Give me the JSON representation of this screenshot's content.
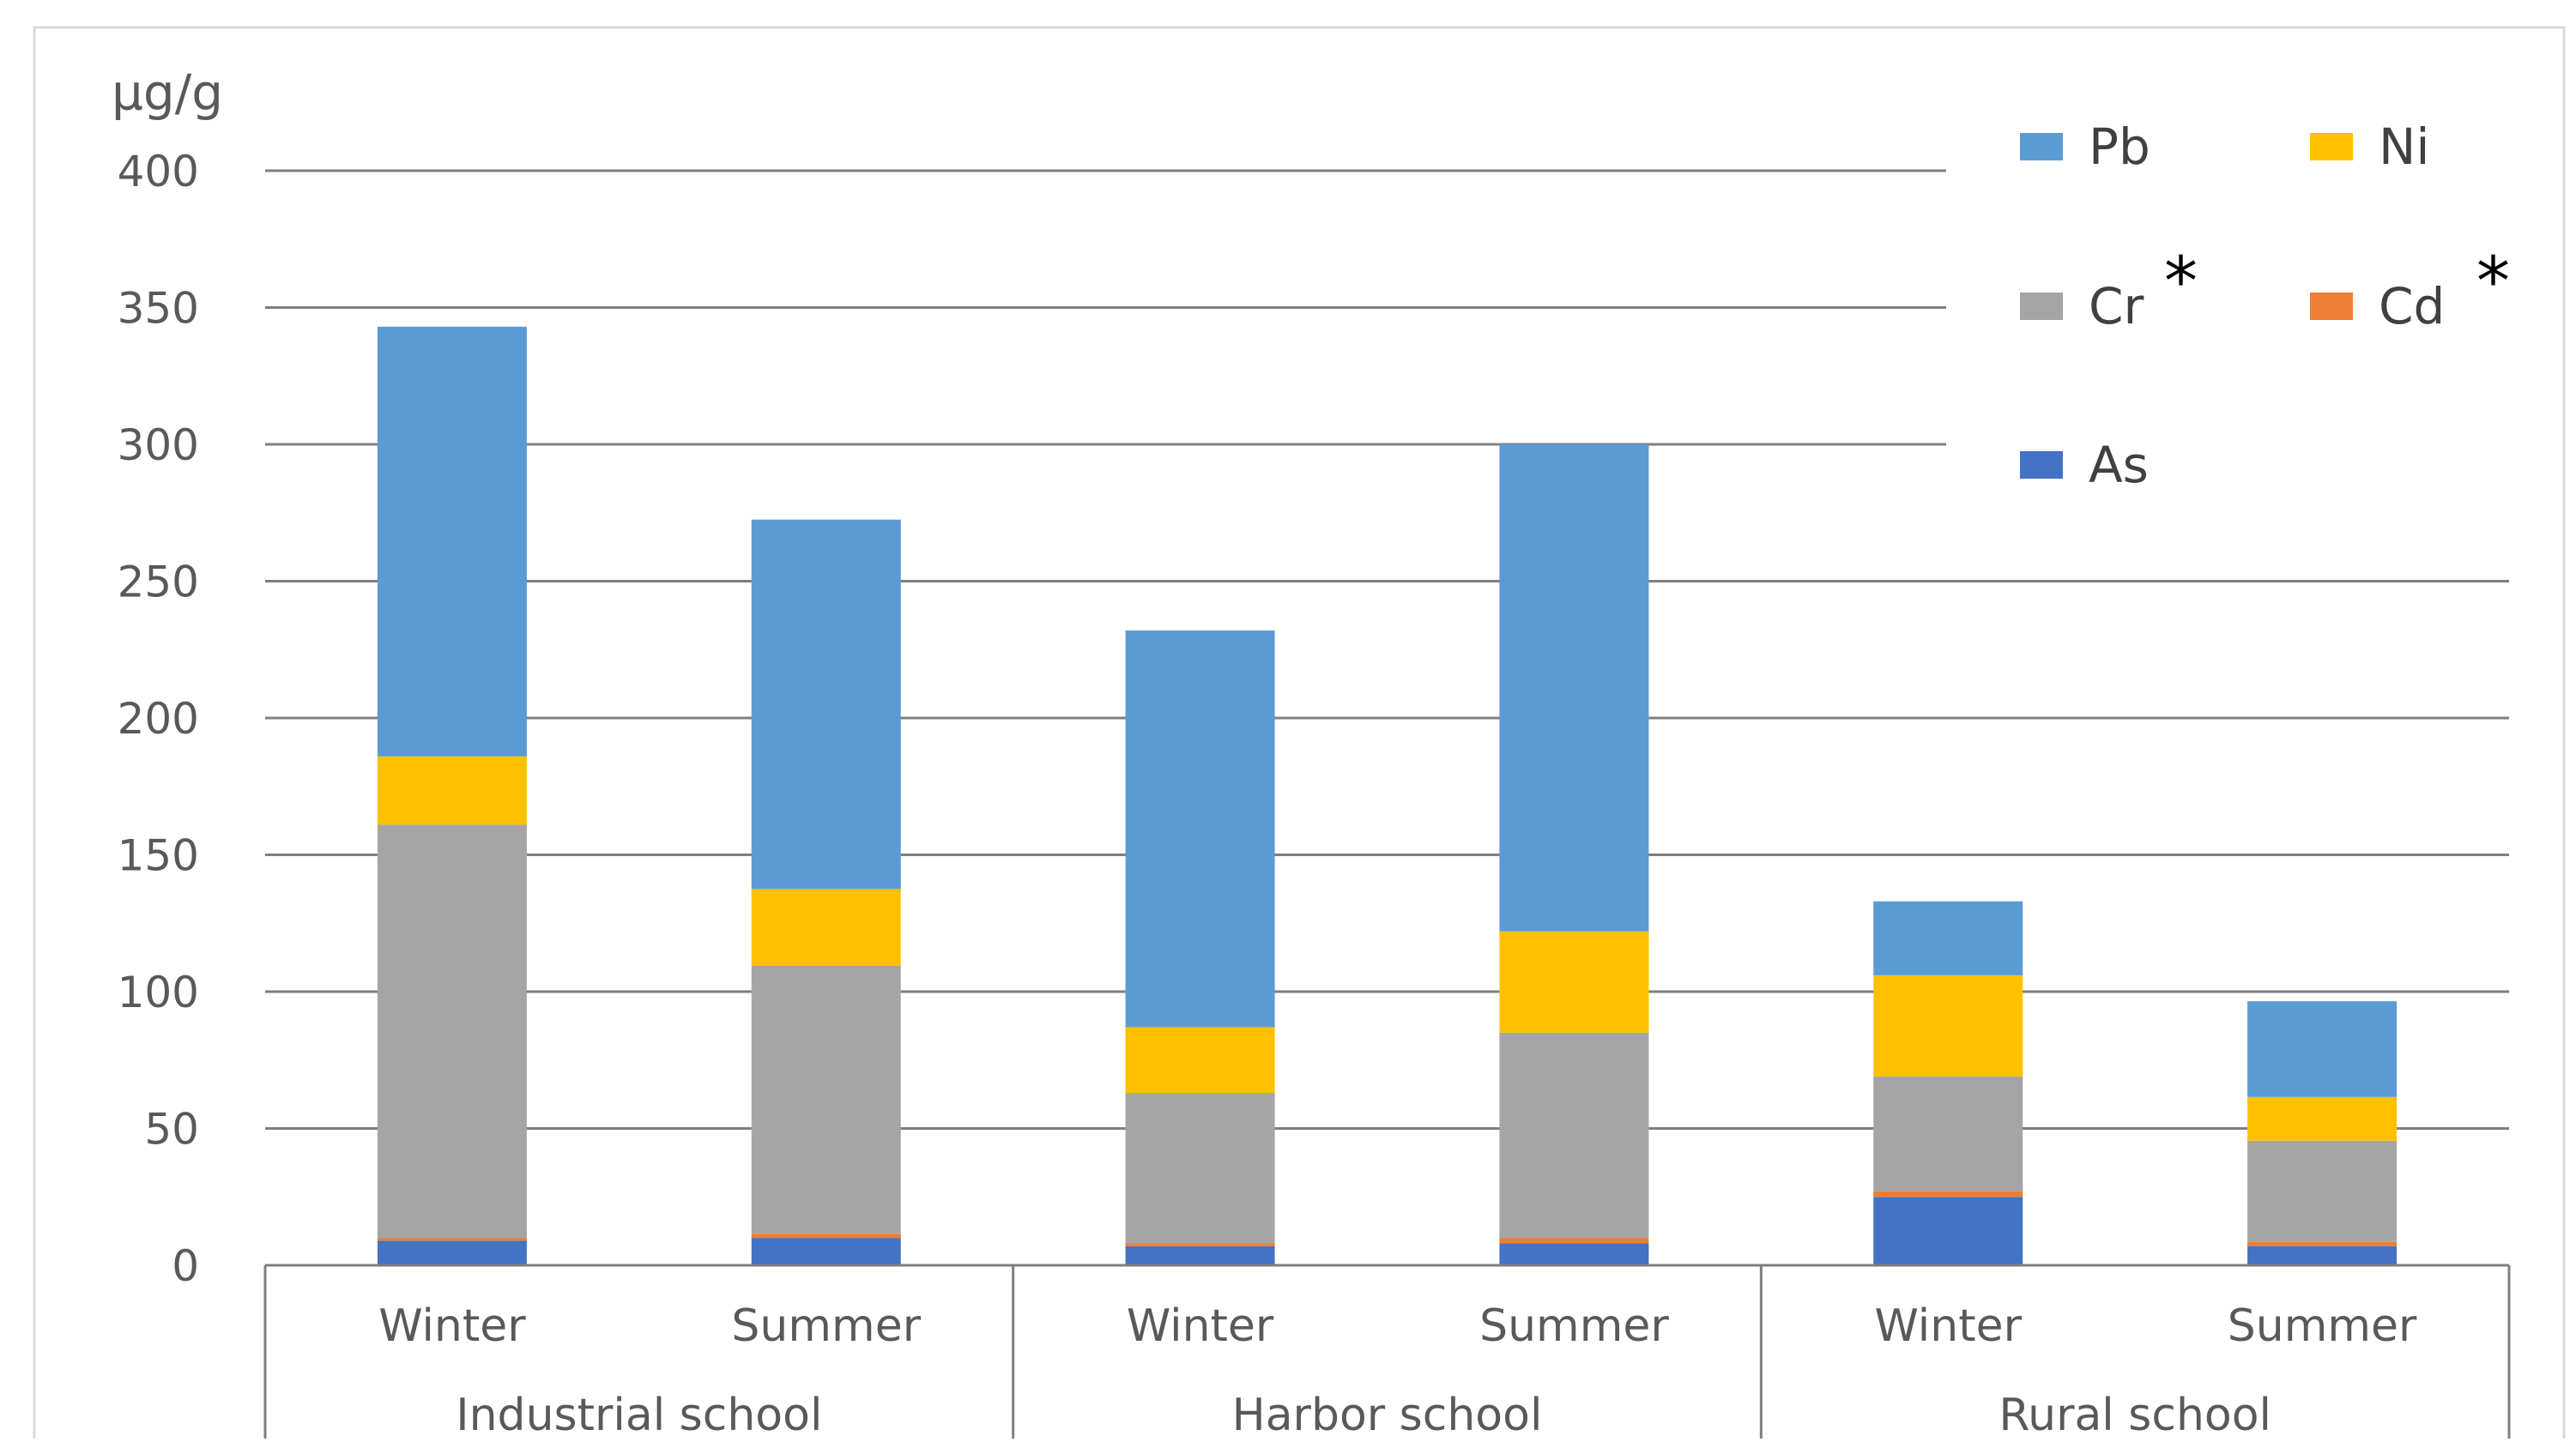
{
  "chart_data": {
    "type": "bar",
    "stacked": true,
    "unit_label": "µg/g",
    "ylim": [
      0,
      400
    ],
    "yticks": [
      0,
      50,
      100,
      150,
      200,
      250,
      300,
      350,
      400
    ],
    "grid": true,
    "legend_position": "top-right",
    "groups": [
      {
        "label": "Industrial school",
        "categories": [
          "Winter",
          "Summer"
        ]
      },
      {
        "label": "Harbor school",
        "categories": [
          "Winter",
          "Summer"
        ]
      },
      {
        "label": "Rural school",
        "categories": [
          "Winter",
          "Summer"
        ]
      }
    ],
    "series": [
      {
        "name": "As",
        "color": "#4472C4",
        "values": [
          9,
          10,
          7,
          8,
          25,
          7
        ]
      },
      {
        "name": "Cd",
        "color": "#ED7D31",
        "values": [
          1,
          1.5,
          1,
          2,
          2,
          1.5
        ]
      },
      {
        "name": "Cr",
        "color": "#A5A5A5",
        "values": [
          151,
          98,
          55,
          75,
          42,
          37
        ],
        "marker": "*"
      },
      {
        "name": "Ni",
        "color": "#FFC000",
        "values": [
          25,
          28,
          24,
          37,
          37,
          16
        ]
      },
      {
        "name": "Pb",
        "color": "#5B9BD5",
        "values": [
          157,
          135,
          145,
          178,
          27,
          35
        ]
      }
    ],
    "legend_order": [
      "Pb",
      "Ni",
      "Cr",
      "Cd",
      "As"
    ],
    "annotations": [
      {
        "series": "Cr",
        "text": "*"
      },
      {
        "series": "Cd",
        "text": "*"
      }
    ]
  }
}
